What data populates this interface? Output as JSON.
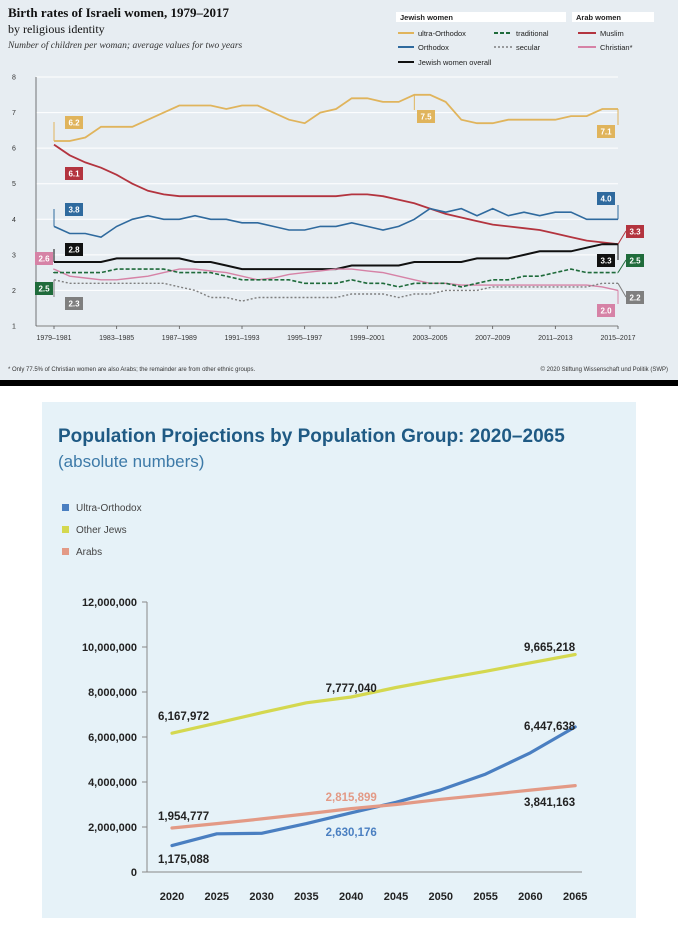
{
  "chart_data": [
    {
      "type": "line",
      "title": "Birth rates of Israeli women, 1979–2017",
      "subtitle": "by religious identity",
      "note": "Number of children per woman; average values for two years",
      "ylabel": "",
      "ylim": [
        1,
        8
      ],
      "yticks": [
        "1",
        "2",
        "3",
        "4",
        "5",
        "6",
        "7",
        "8"
      ],
      "x_ticks": [
        "1979–1981",
        "1983–1985",
        "1987–1989",
        "1991–1993",
        "1995–1997",
        "1999–2001",
        "2003–2005",
        "2007–2009",
        "2011–2013",
        "2015–2017"
      ],
      "legend": {
        "jewish_heading": "Jewish women",
        "arab_heading": "Arab women",
        "items": {
          "ultra": "ultra-Orthodox",
          "traditional": "traditional",
          "orthodox": "Orthodox",
          "secular": "secular",
          "overall": "Jewish women overall",
          "muslim": "Muslim",
          "christian": "Christian*"
        }
      },
      "colors": {
        "ultra": "#e0b45c",
        "orthodox": "#2f6a9e",
        "traditional": "#1f6b3b",
        "secular": "#7f7f7f",
        "overall": "#111111",
        "muslim": "#b3343f",
        "christian": "#d682a6"
      },
      "series": [
        {
          "key": "ultra",
          "name": "ultra-Orthodox",
          "values": [
            6.2,
            6.2,
            6.3,
            6.6,
            6.6,
            6.6,
            6.8,
            7.0,
            7.2,
            7.2,
            7.2,
            7.1,
            7.2,
            7.2,
            7.0,
            6.8,
            6.7,
            7.0,
            7.1,
            7.4,
            7.4,
            7.3,
            7.3,
            7.5,
            7.5,
            7.3,
            6.8,
            6.7,
            6.7,
            6.8,
            6.8,
            6.8,
            6.8,
            6.9,
            6.9,
            7.1,
            7.1
          ]
        },
        {
          "key": "muslim",
          "name": "Muslim",
          "values": [
            6.1,
            5.8,
            5.6,
            5.45,
            5.25,
            5.0,
            4.8,
            4.7,
            4.65,
            4.65,
            4.65,
            4.65,
            4.65,
            4.65,
            4.65,
            4.65,
            4.65,
            4.65,
            4.65,
            4.7,
            4.7,
            4.65,
            4.55,
            4.45,
            4.3,
            4.15,
            4.05,
            3.95,
            3.85,
            3.8,
            3.75,
            3.7,
            3.6,
            3.5,
            3.4,
            3.35,
            3.3
          ]
        },
        {
          "key": "orthodox",
          "name": "Orthodox",
          "values": [
            3.8,
            3.6,
            3.6,
            3.5,
            3.8,
            4.0,
            4.1,
            4.0,
            4.0,
            4.1,
            4.0,
            4.0,
            3.9,
            3.9,
            3.8,
            3.7,
            3.7,
            3.8,
            3.8,
            3.9,
            3.8,
            3.7,
            3.8,
            4.0,
            4.3,
            4.2,
            4.3,
            4.1,
            4.3,
            4.1,
            4.2,
            4.1,
            4.2,
            4.2,
            4.0,
            4.0,
            4.0
          ]
        },
        {
          "key": "overall",
          "name": "Jewish women overall",
          "values": [
            2.8,
            2.8,
            2.8,
            2.8,
            2.9,
            2.9,
            2.9,
            2.9,
            2.9,
            2.8,
            2.8,
            2.7,
            2.6,
            2.6,
            2.6,
            2.6,
            2.6,
            2.6,
            2.6,
            2.7,
            2.7,
            2.7,
            2.7,
            2.8,
            2.8,
            2.8,
            2.8,
            2.9,
            2.9,
            2.9,
            3.0,
            3.1,
            3.1,
            3.1,
            3.2,
            3.3,
            3.3
          ]
        },
        {
          "key": "christian",
          "name": "Christian*",
          "values": [
            2.6,
            2.4,
            2.35,
            2.3,
            2.3,
            2.35,
            2.4,
            2.5,
            2.6,
            2.6,
            2.55,
            2.5,
            2.4,
            2.3,
            2.35,
            2.45,
            2.5,
            2.55,
            2.6,
            2.6,
            2.55,
            2.5,
            2.4,
            2.3,
            2.2,
            2.2,
            2.15,
            2.15,
            2.15,
            2.15,
            2.15,
            2.15,
            2.15,
            2.15,
            2.15,
            2.1,
            2.0
          ]
        },
        {
          "key": "traditional",
          "name": "traditional",
          "values": [
            2.5,
            2.5,
            2.5,
            2.5,
            2.6,
            2.6,
            2.6,
            2.6,
            2.5,
            2.5,
            2.5,
            2.4,
            2.3,
            2.3,
            2.3,
            2.3,
            2.2,
            2.2,
            2.2,
            2.3,
            2.2,
            2.2,
            2.1,
            2.2,
            2.2,
            2.2,
            2.1,
            2.2,
            2.3,
            2.3,
            2.4,
            2.4,
            2.5,
            2.6,
            2.5,
            2.5,
            2.5
          ]
        },
        {
          "key": "secular",
          "name": "secular",
          "values": [
            2.3,
            2.2,
            2.2,
            2.2,
            2.2,
            2.2,
            2.2,
            2.2,
            2.1,
            2.0,
            1.8,
            1.8,
            1.7,
            1.8,
            1.8,
            1.8,
            1.8,
            1.8,
            1.8,
            1.9,
            1.9,
            1.9,
            1.8,
            1.9,
            1.9,
            2.0,
            2.0,
            2.0,
            2.1,
            2.1,
            2.1,
            2.1,
            2.1,
            2.1,
            2.1,
            2.2,
            2.2
          ]
        }
      ],
      "data_labels": {
        "ultra_start": "6.2",
        "ultra_peak": "7.5",
        "ultra_end": "7.1",
        "muslim_start": "6.1",
        "muslim_end": "3.3",
        "orthodox_start": "3.8",
        "orthodox_end": "4.0",
        "overall_start": "2.8",
        "overall_end": "3.3",
        "christian_start": "2.6",
        "christian_end": "2.0",
        "traditional_start": "2.5",
        "traditional_end": "2.5",
        "secular_start": "2.3",
        "secular_end": "2.2"
      },
      "footnote": "* Only 77.5% of Christian women are also Arabs; the remainder are from other ethnic groups.",
      "credit": "© 2020 Stiftung Wissenschaft und Politik (SWP)"
    },
    {
      "type": "line",
      "title": "Population Projections by Population Group: 2020–2065",
      "subtitle": "(absolute numbers)",
      "x": [
        "2020",
        "2025",
        "2030",
        "2035",
        "2040",
        "2045",
        "2050",
        "2055",
        "2060",
        "2065"
      ],
      "ylim": [
        0,
        12000000
      ],
      "yticks": [
        "0",
        "2,000,000",
        "4,000,000",
        "6,000,000",
        "8,000,000",
        "10,000,000",
        "12,000,000"
      ],
      "colors": {
        "ultra": "#4a7fc1",
        "other": "#d4d84f",
        "arabs": "#e39a86"
      },
      "series": [
        {
          "key": "ultra",
          "name": "Ultra-Orthodox",
          "values": [
            1175088,
            1700000,
            1720000,
            2150000,
            2630176,
            3100000,
            3650000,
            4350000,
            5300000,
            6447638
          ]
        },
        {
          "key": "other",
          "name": "Other Jews",
          "values": [
            6167972,
            6620000,
            7080000,
            7520000,
            7777040,
            8200000,
            8570000,
            8920000,
            9300000,
            9665218
          ]
        },
        {
          "key": "arabs",
          "name": "Arabs",
          "values": [
            1954777,
            2150000,
            2360000,
            2580000,
            2815899,
            3000000,
            3230000,
            3430000,
            3640000,
            3841163
          ]
        }
      ],
      "data_labels": {
        "other_2020": "6,167,972",
        "other_2040": "7,777,040",
        "other_2065": "9,665,218",
        "ultra_2020": "1,175,088",
        "ultra_2040": "2,630,176",
        "ultra_2065": "6,447,638",
        "arabs_2020": "1,954,777",
        "arabs_2040": "2,815,899",
        "arabs_2065": "3,841,163"
      }
    }
  ]
}
